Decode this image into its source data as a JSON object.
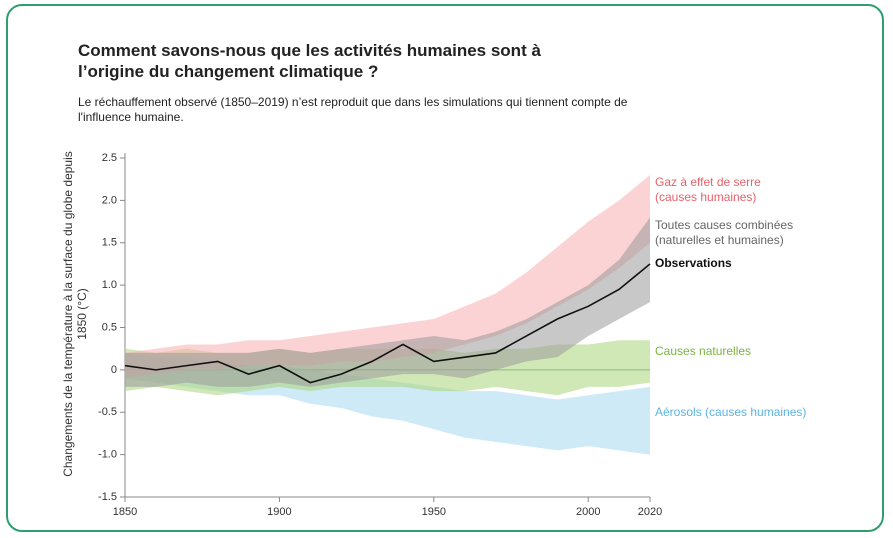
{
  "chart_data": {
    "type": "line",
    "title": "Comment savons-nous que les activités humaines sont à l’origine du changement climatique ?",
    "subtitle": "Le réchauffement observé (1850–2019) n’est reproduit que dans les simulations qui tiennent compte de l'influence humaine.",
    "ylabel": "Changements de la température à la surface du globe depuis 1850 (°C)",
    "x": [
      1850,
      1860,
      1870,
      1880,
      1890,
      1900,
      1910,
      1920,
      1930,
      1940,
      1950,
      1960,
      1970,
      1980,
      1990,
      2000,
      2010,
      2020
    ],
    "xlim": [
      1850,
      2020
    ],
    "xticks": [
      1850,
      1900,
      1950,
      2000,
      2020
    ],
    "ylim": [
      -1.5,
      2.5
    ],
    "yticks": [
      -1.5,
      {
        "value": -1,
        "label": "-1.0"
      },
      -0.5,
      0,
      0.5,
      {
        "value": 1,
        "label": "1.0"
      },
      1.5,
      {
        "value": 2,
        "label": "2.0"
      },
      2.5
    ],
    "bands": [
      {
        "name": "Aérosols (causes humaines)",
        "color": "#5bb5e0",
        "fill": "#a8d8f0",
        "lower": [
          -0.1,
          -0.15,
          -0.2,
          -0.25,
          -0.3,
          -0.3,
          -0.4,
          -0.45,
          -0.55,
          -0.6,
          -0.7,
          -0.8,
          -0.85,
          -0.9,
          -0.95,
          -0.9,
          -0.95,
          -1.0
        ],
        "upper": [
          0.2,
          0.15,
          0.15,
          0.1,
          0.05,
          0.05,
          0,
          -0.05,
          -0.1,
          -0.15,
          -0.2,
          -0.25,
          -0.25,
          -0.3,
          -0.35,
          -0.3,
          -0.25,
          -0.2
        ]
      },
      {
        "name": "Causes naturelles",
        "color": "#7cb342",
        "fill": "#a9d37a",
        "lower": [
          -0.25,
          -0.2,
          -0.25,
          -0.3,
          -0.25,
          -0.2,
          -0.25,
          -0.2,
          -0.2,
          -0.2,
          -0.25,
          -0.25,
          -0.2,
          -0.25,
          -0.3,
          -0.2,
          -0.2,
          -0.15
        ],
        "upper": [
          0.25,
          0.2,
          0.25,
          0.2,
          0.2,
          0.25,
          0.2,
          0.25,
          0.25,
          0.25,
          0.25,
          0.2,
          0.25,
          0.25,
          0.3,
          0.3,
          0.35,
          0.35
        ]
      },
      {
        "name": "Gaz à effet de serre (causes humaines)",
        "color": "#e8616a",
        "fill": "#f7aeb2",
        "lower": [
          -0.1,
          -0.05,
          0,
          0,
          0.05,
          0.05,
          0.05,
          0.1,
          0.1,
          0.15,
          0.2,
          0.3,
          0.4,
          0.55,
          0.75,
          0.95,
          1.2,
          1.5
        ],
        "upper": [
          0.2,
          0.25,
          0.3,
          0.3,
          0.35,
          0.35,
          0.4,
          0.45,
          0.5,
          0.55,
          0.6,
          0.75,
          0.9,
          1.15,
          1.45,
          1.75,
          2.0,
          2.3
        ]
      },
      {
        "name": "Toutes causes combinées (naturelles et humaines)",
        "color": "#666666",
        "fill": "#9a9a9a",
        "lower": [
          -0.2,
          -0.2,
          -0.15,
          -0.2,
          -0.2,
          -0.15,
          -0.2,
          -0.15,
          -0.1,
          -0.05,
          -0.05,
          -0.1,
          0,
          0.1,
          0.15,
          0.4,
          0.6,
          0.8
        ],
        "upper": [
          0.2,
          0.2,
          0.2,
          0.2,
          0.2,
          0.25,
          0.2,
          0.25,
          0.3,
          0.35,
          0.4,
          0.35,
          0.45,
          0.6,
          0.8,
          1.0,
          1.3,
          1.8
        ]
      }
    ],
    "series": [
      {
        "name": "Observations",
        "color": "#111111",
        "values": [
          0.05,
          0.0,
          0.05,
          0.1,
          -0.05,
          0.05,
          -0.15,
          -0.05,
          0.1,
          0.3,
          0.1,
          0.15,
          0.2,
          0.4,
          0.6,
          0.75,
          0.95,
          1.25
        ]
      }
    ]
  }
}
